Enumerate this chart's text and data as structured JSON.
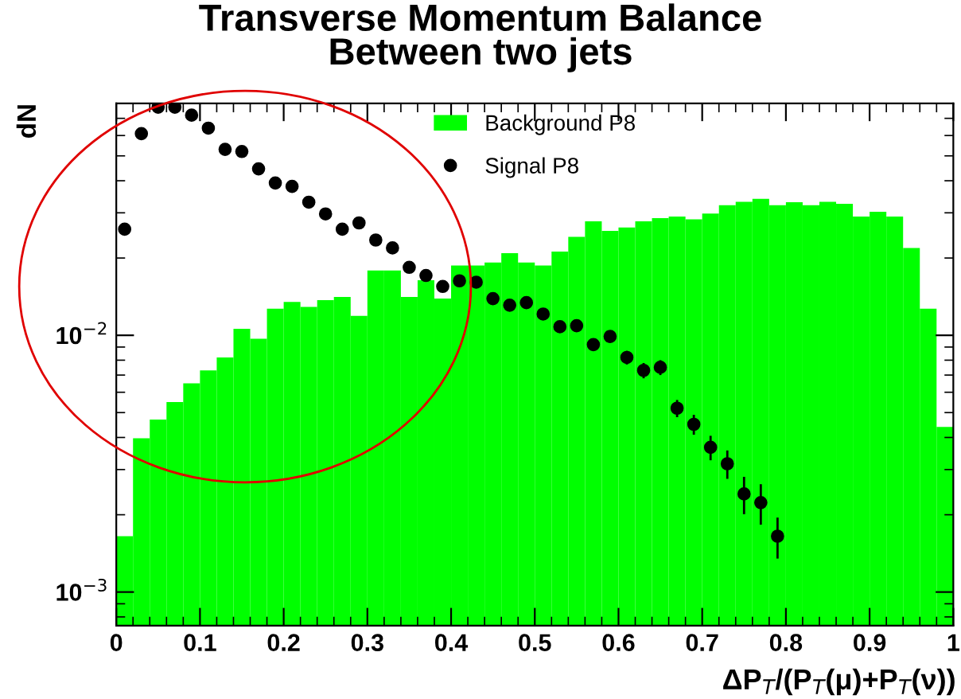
{
  "chart_data": {
    "type": "histogram",
    "title": "Transverse Momentum Balance\nBetween two jets",
    "xlabel": "ΔP$_{T}$/(P$_{T}$(μ)+P$_{T}$(ν))",
    "ylabel": "dN",
    "bins": [
      0,
      0.02,
      0.04,
      0.06,
      0.08,
      0.1,
      0.12,
      0.14,
      0.16,
      0.18,
      0.2,
      0.22,
      0.24,
      0.26,
      0.28,
      0.3,
      0.32,
      0.34,
      0.36,
      0.38,
      0.4,
      0.42,
      0.44,
      0.46,
      0.48,
      0.5,
      0.52,
      0.54,
      0.56,
      0.58,
      0.6,
      0.62,
      0.64,
      0.66,
      0.68,
      0.7,
      0.72,
      0.74,
      0.76,
      0.78,
      0.8,
      0.82,
      0.84,
      0.86,
      0.88,
      0.9,
      0.92,
      0.94,
      0.96,
      0.98,
      1.0
    ],
    "series": [
      {
        "name": "Background P8",
        "color": "#00ff00",
        "values": [
          0.00165,
          0.00397,
          0.0047,
          0.0055,
          0.0065,
          0.0073,
          0.0082,
          0.0106,
          0.0097,
          0.0127,
          0.0135,
          0.0129,
          0.0137,
          0.0141,
          0.0119,
          0.0179,
          0.0179,
          0.0141,
          0.0164,
          0.0139,
          0.0187,
          0.0187,
          0.0192,
          0.0209,
          0.0192,
          0.0187,
          0.0212,
          0.0242,
          0.0278,
          0.0255,
          0.0263,
          0.0278,
          0.0286,
          0.029,
          0.0283,
          0.0298,
          0.0321,
          0.0331,
          0.034,
          0.0321,
          0.033,
          0.0321,
          0.0331,
          0.0325,
          0.029,
          0.0303,
          0.029,
          0.0219,
          0.0127,
          0.0044
        ]
      },
      {
        "name": "Signal P8",
        "type": "scatter",
        "color": "#000000",
        "x": [
          0.01,
          0.03,
          0.05,
          0.07,
          0.09,
          0.11,
          0.13,
          0.15,
          0.17,
          0.19,
          0.21,
          0.23,
          0.25,
          0.27,
          0.29,
          0.31,
          0.33,
          0.35,
          0.37,
          0.39,
          0.41,
          0.43,
          0.45,
          0.47,
          0.49,
          0.51,
          0.53,
          0.55,
          0.57,
          0.59,
          0.61,
          0.63,
          0.65,
          0.67,
          0.69,
          0.71,
          0.73,
          0.75,
          0.77,
          0.79
        ],
        "values": [
          0.0259,
          0.061,
          0.0774,
          0.0774,
          0.072,
          0.0641,
          0.053,
          0.052,
          0.0445,
          0.0392,
          0.038,
          0.033,
          0.0297,
          0.0259,
          0.0274,
          0.0235,
          0.0219,
          0.0184,
          0.0171,
          0.0155,
          0.0163,
          0.0161,
          0.0139,
          0.0131,
          0.0134,
          0.0121,
          0.0108,
          0.0109,
          0.0092,
          0.0099,
          0.0082,
          0.0073,
          0.0075,
          0.0052,
          0.0045,
          0.00366,
          0.00316,
          0.00241,
          0.00223,
          0.00165
        ],
        "errors": [
          null,
          null,
          null,
          null,
          null,
          null,
          null,
          null,
          null,
          null,
          null,
          null,
          null,
          null,
          null,
          null,
          null,
          null,
          null,
          null,
          null,
          0.0006,
          0.0005,
          0.0005,
          0.0005,
          0.0005,
          0.0005,
          0.0005,
          0.0005,
          0.0005,
          0.0005,
          0.0005,
          0.0005,
          0.0004,
          0.0004,
          0.0004,
          0.0004,
          0.0004,
          0.0004,
          0.0003
        ]
      }
    ],
    "xlim": [
      0,
      1
    ],
    "xticks": [
      0,
      0.1,
      0.2,
      0.3,
      0.4,
      0.5,
      0.6,
      0.7,
      0.8,
      0.9,
      1
    ],
    "ylim": [
      0.00074,
      0.08
    ],
    "yticks": [
      {
        "value": 0.001,
        "label": "10$^{−3}$"
      },
      {
        "value": 0.01,
        "label": "10$^{−2}$"
      }
    ],
    "log": true,
    "legend": "top",
    "marker": "circle"
  }
}
